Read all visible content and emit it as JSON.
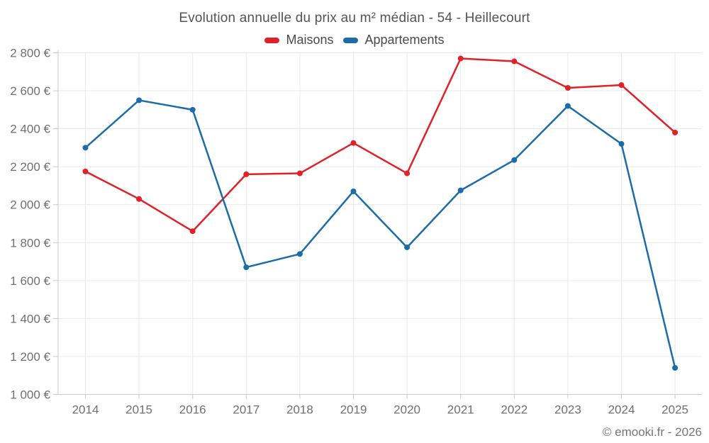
{
  "chart_data": {
    "type": "line",
    "title": "Evolution annuelle du prix au m² médian - 54 - Heillecourt",
    "categories": [
      "2014",
      "2015",
      "2016",
      "2017",
      "2018",
      "2019",
      "2020",
      "2021",
      "2022",
      "2023",
      "2024",
      "2025"
    ],
    "series": [
      {
        "name": "Maisons",
        "color": "#e02128",
        "values": [
          2175,
          2030,
          1860,
          2160,
          2165,
          2325,
          2165,
          2770,
          2755,
          2615,
          2630,
          2380
        ]
      },
      {
        "name": "Appartements",
        "color": "#1b6ca8",
        "values": [
          2300,
          2550,
          2500,
          1670,
          1740,
          2070,
          1775,
          2075,
          2235,
          2520,
          2320,
          1140
        ]
      }
    ],
    "xlabel": "",
    "ylabel": "",
    "unit": "€",
    "ylim": [
      1000,
      2800
    ],
    "y_ticks": [
      {
        "value": 1000,
        "label": "1 000 €"
      },
      {
        "value": 1200,
        "label": "1 200 €"
      },
      {
        "value": 1400,
        "label": "1 400 €"
      },
      {
        "value": 1600,
        "label": "1 600 €"
      },
      {
        "value": 1800,
        "label": "1 800 €"
      },
      {
        "value": 2000,
        "label": "2 000 €"
      },
      {
        "value": 2200,
        "label": "2 200 €"
      },
      {
        "value": 2400,
        "label": "2 400 €"
      },
      {
        "value": 2600,
        "label": "2 600 €"
      },
      {
        "value": 2800,
        "label": "2 800 €"
      }
    ],
    "grid": true,
    "legend_position": "top"
  },
  "footer": {
    "copyright": "© emooki.fr - 2026"
  },
  "colors": {
    "grid": "#e9e9e9",
    "axis": "#c9c9c9",
    "tick": "#c9c9c9",
    "tick_label": "#6f6f6f",
    "title": "#545454",
    "legend_text": "#4a4a4a",
    "background": "#ffffff"
  }
}
